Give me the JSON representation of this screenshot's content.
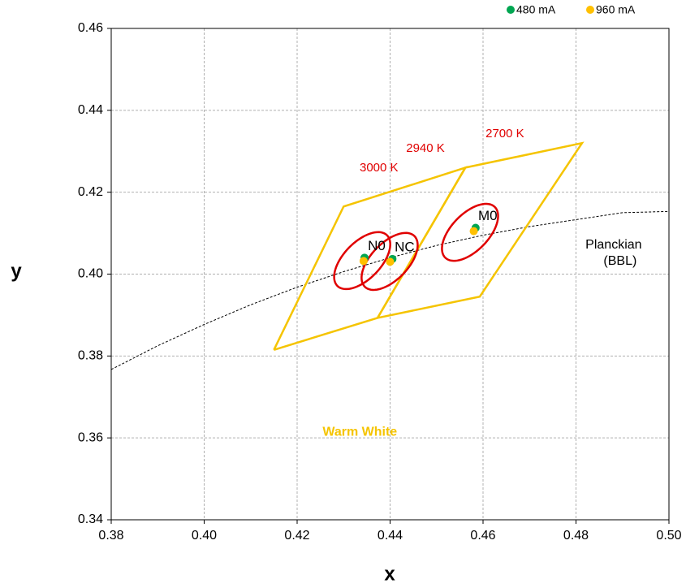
{
  "chart_data": {
    "type": "scatter",
    "x_label": "x",
    "y_label": "y",
    "xlim": [
      0.38,
      0.5
    ],
    "ylim": [
      0.34,
      0.46
    ],
    "xticks": [
      {
        "value": 0.38,
        "label": "0.38"
      },
      {
        "value": 0.4,
        "label": "0.40"
      },
      {
        "value": 0.42,
        "label": "0.42"
      },
      {
        "value": 0.44,
        "label": "0.44"
      },
      {
        "value": 0.46,
        "label": "0.46"
      },
      {
        "value": 0.48,
        "label": "0.48"
      },
      {
        "value": 0.5,
        "label": "0.50"
      }
    ],
    "yticks": [
      {
        "value": 0.34,
        "label": "0.34"
      },
      {
        "value": 0.36,
        "label": "0.36"
      },
      {
        "value": 0.38,
        "label": "0.38"
      },
      {
        "value": 0.4,
        "label": "0.40"
      },
      {
        "value": 0.42,
        "label": "0.42"
      },
      {
        "value": 0.44,
        "label": "0.44"
      },
      {
        "value": 0.46,
        "label": "0.46"
      }
    ],
    "grid": true,
    "legend": "top-right",
    "point_labels": [
      "N0",
      "NC",
      "M0"
    ],
    "series": [
      {
        "name": "480 mA",
        "color": "#00a651",
        "x": [
          0.4345,
          0.4405,
          0.4584
        ],
        "y": [
          0.404,
          0.4037,
          0.4113
        ]
      },
      {
        "name": "960 mA",
        "color": "#ffc000",
        "x": [
          0.4343,
          0.44,
          0.458
        ],
        "y": [
          0.4032,
          0.403,
          0.4105
        ]
      }
    ],
    "planckian": {
      "lines": [
        "Planckian",
        "(BBL)"
      ],
      "label_x": 0.4881,
      "label_y": 0.4051,
      "color": "#000000",
      "x": [
        0.38,
        0.39,
        0.4,
        0.41,
        0.42,
        0.43,
        0.44,
        0.45,
        0.46,
        0.47,
        0.48,
        0.49,
        0.5
      ],
      "y": [
        0.3767,
        0.3825,
        0.3877,
        0.3925,
        0.3968,
        0.4006,
        0.404,
        0.407,
        0.4095,
        0.4116,
        0.4133,
        0.415,
        0.4153
      ]
    },
    "regions": [
      {
        "color": "#f5c400",
        "x": [
          0.415,
          0.43,
          0.4562,
          0.4373,
          0.415
        ],
        "y": [
          0.3815,
          0.4165,
          0.426,
          0.3893,
          0.3815
        ]
      },
      {
        "color": "#f5c400",
        "x": [
          0.4373,
          0.4562,
          0.4813,
          0.4593,
          0.4373
        ],
        "y": [
          0.3893,
          0.426,
          0.432,
          0.3945,
          0.3893
        ]
      }
    ],
    "ellipses": [
      {
        "color": "#e00000",
        "cx": 0.434,
        "cy": 0.4033,
        "a": 0.0082,
        "b": 0.0042,
        "angle": 52
      },
      {
        "color": "#e00000",
        "cx": 0.4399,
        "cy": 0.4031,
        "a": 0.0082,
        "b": 0.0042,
        "angle": 52
      },
      {
        "color": "#e00000",
        "cx": 0.4572,
        "cy": 0.4102,
        "a": 0.0082,
        "b": 0.0042,
        "angle": 52
      }
    ],
    "annotations": [
      {
        "text": "3000 K",
        "x": 0.4376,
        "y": 0.4259,
        "color": "#e00000"
      },
      {
        "text": "2940 K",
        "x": 0.4476,
        "y": 0.4306,
        "color": "#e00000"
      },
      {
        "text": "2700 K",
        "x": 0.4647,
        "y": 0.4342,
        "color": "#e00000"
      },
      {
        "text": "Warm White",
        "x": 0.4335,
        "y": 0.3614,
        "color": "#f5c400"
      }
    ]
  }
}
